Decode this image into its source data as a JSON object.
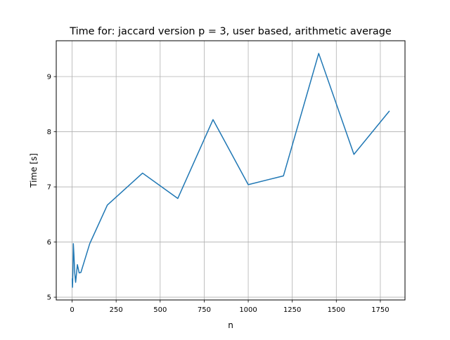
{
  "chart_data": {
    "type": "line",
    "title": "Time for: jaccard version p = 3, user based, arithmetic average",
    "xlabel": "n",
    "ylabel": "Time [s]",
    "xlim": [
      -90,
      1890
    ],
    "ylim": [
      4.95,
      9.65
    ],
    "xticks": [
      0,
      250,
      500,
      750,
      1000,
      1250,
      1500,
      1750
    ],
    "yticks": [
      5,
      6,
      7,
      8,
      9
    ],
    "grid": true,
    "series": [
      {
        "color": "#1f77b4",
        "x": [
          1,
          2,
          3,
          5,
          7,
          10,
          15,
          20,
          30,
          40,
          50,
          100,
          200,
          400,
          600,
          800,
          1000,
          1200,
          1400,
          1600,
          1800
        ],
        "y": [
          5.33,
          5.18,
          5.27,
          5.55,
          5.97,
          5.79,
          5.44,
          5.27,
          5.59,
          5.44,
          5.45,
          5.97,
          6.67,
          7.25,
          6.79,
          8.22,
          7.04,
          7.2,
          9.42,
          7.59,
          8.37
        ]
      }
    ]
  }
}
